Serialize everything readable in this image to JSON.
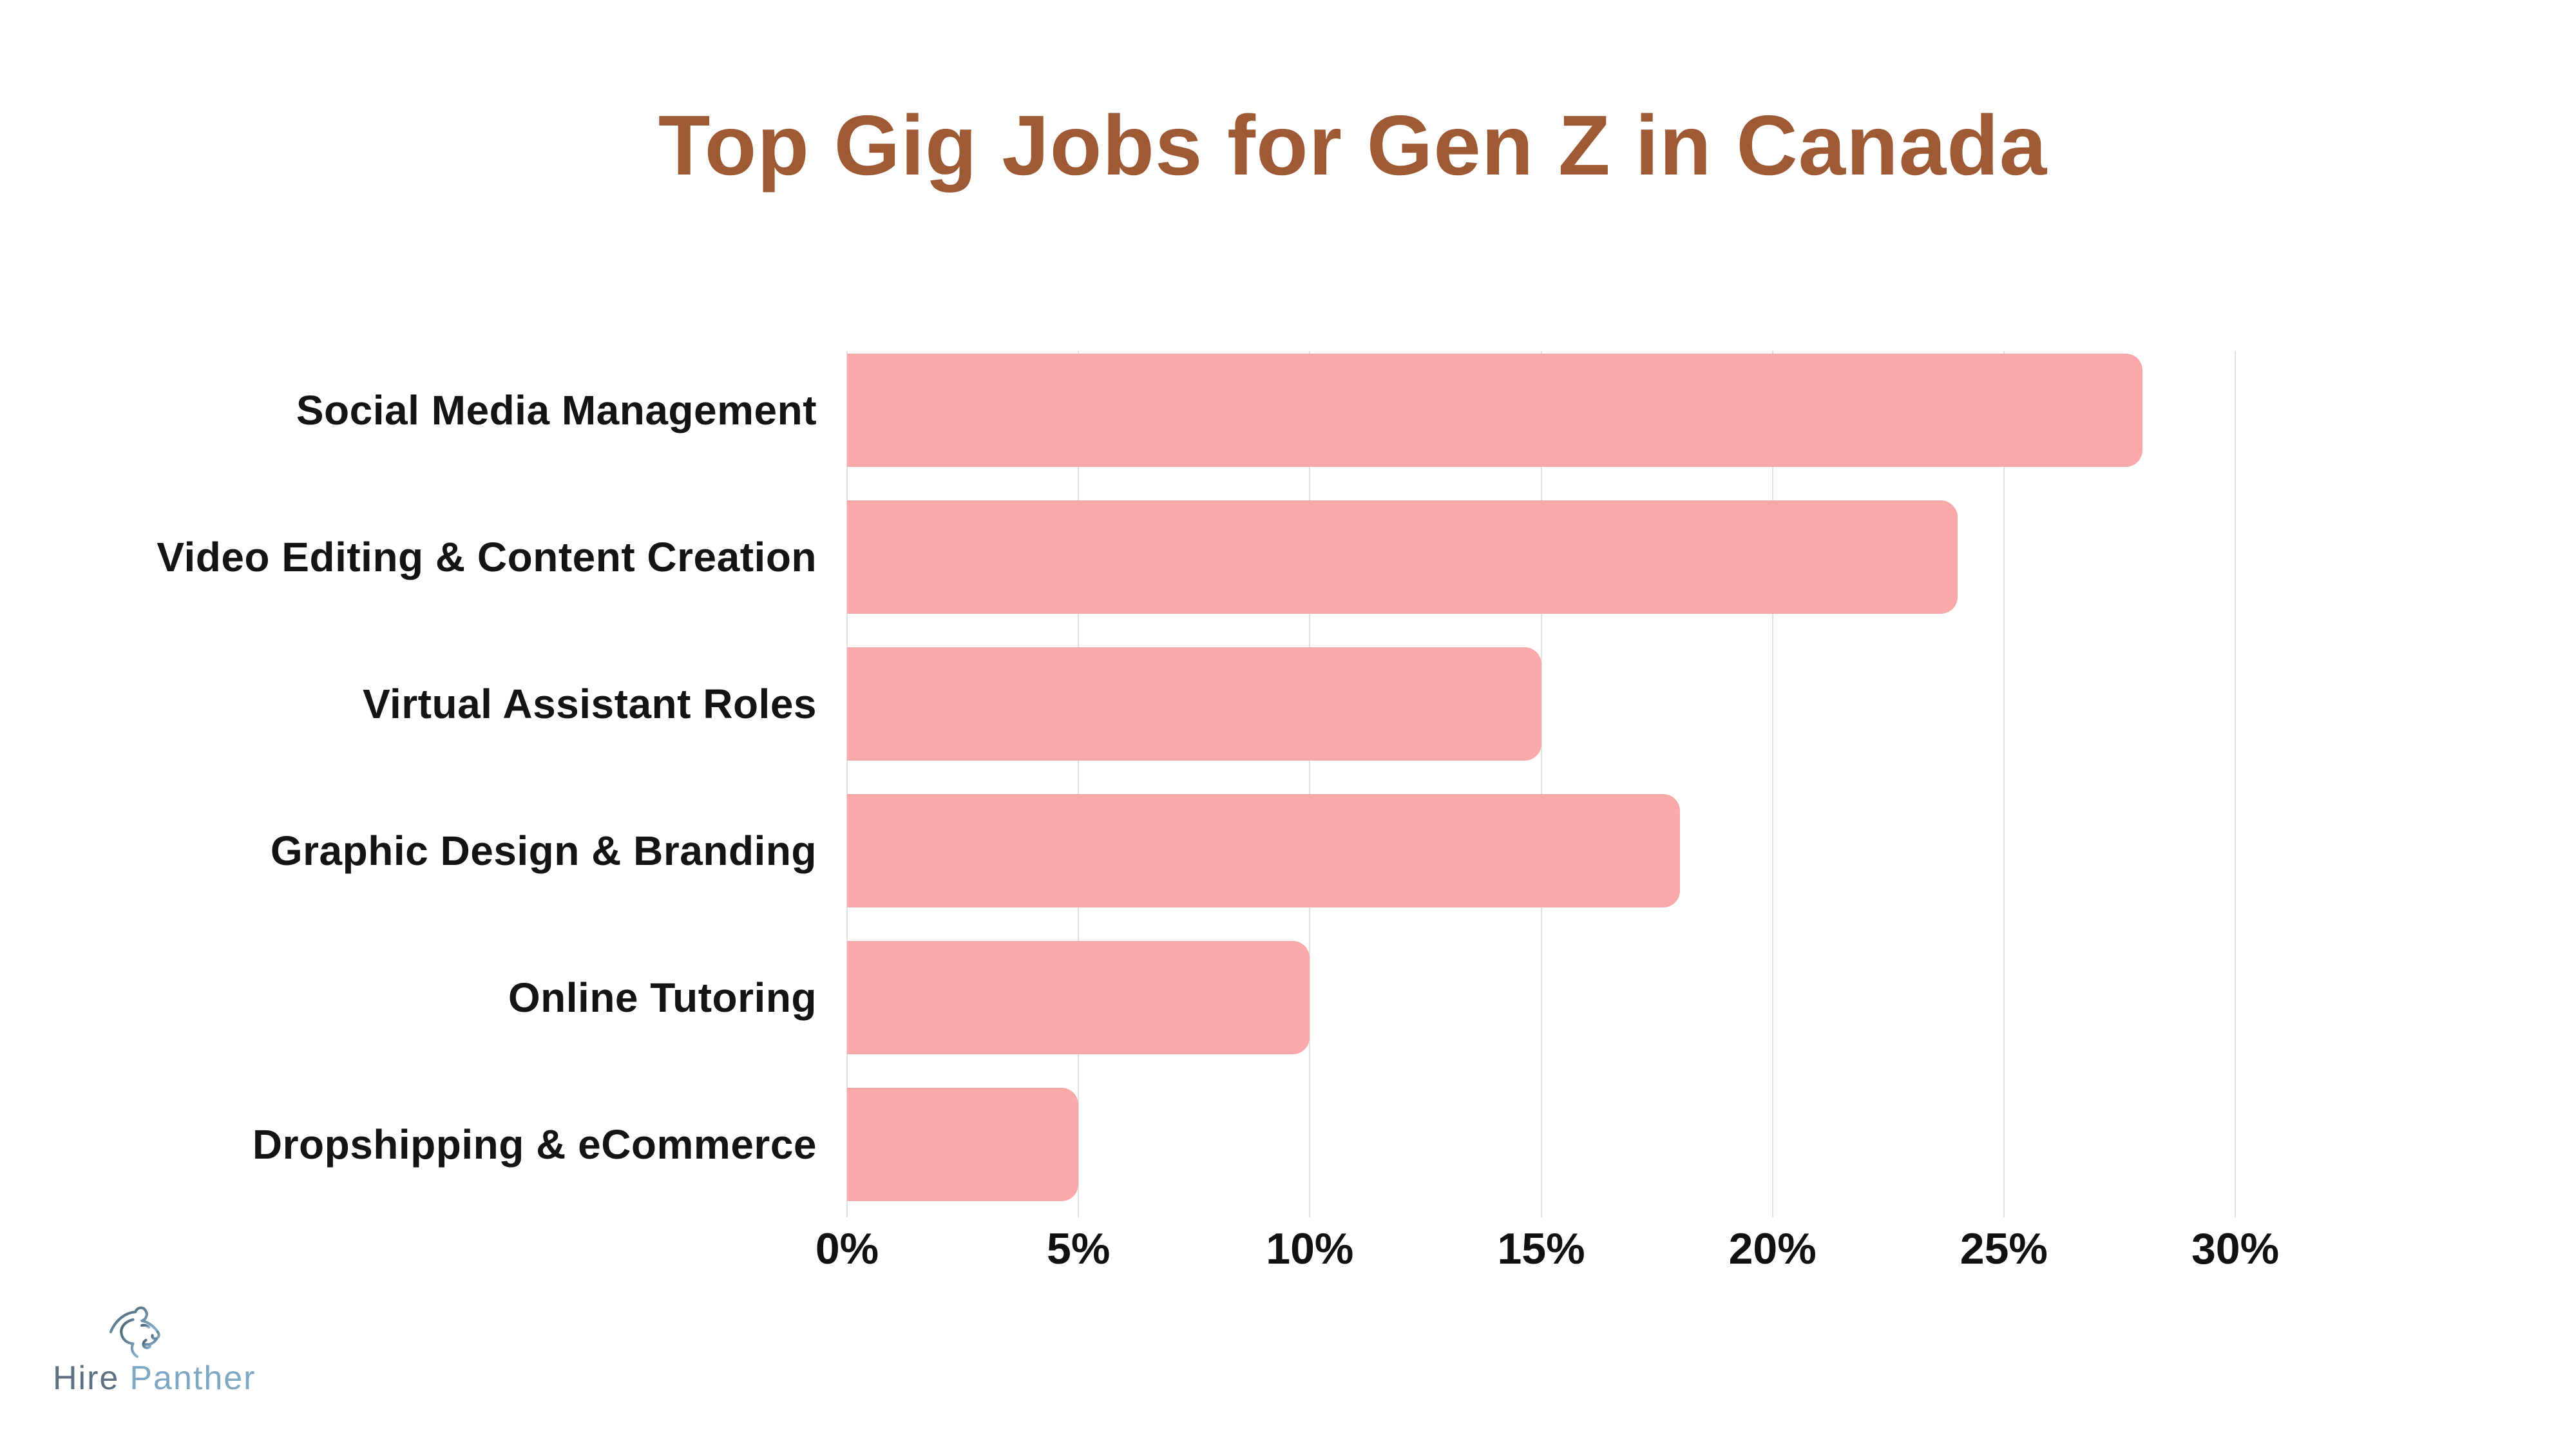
{
  "chart_data": {
    "type": "bar",
    "orientation": "horizontal",
    "title": "Top Gig Jobs for Gen Z in Canada",
    "title_color": "#9e5a35",
    "categories": [
      "Social Media Management",
      "Video Editing & Content Creation",
      "Virtual Assistant Roles",
      "Graphic Design & Branding",
      "Online Tutoring",
      "Dropshipping & eCommerce"
    ],
    "values": [
      28,
      24,
      15,
      18,
      10,
      5
    ],
    "unit": "%",
    "xlabel": "",
    "ylabel": "",
    "xlim": [
      0,
      30
    ],
    "x_tick_values": [
      0,
      5,
      10,
      15,
      20,
      25,
      30
    ],
    "x_tick_labels": [
      "0%",
      "5%",
      "10%",
      "15%",
      "20%",
      "25%",
      "30%"
    ],
    "grid": "vertical",
    "legend": "none",
    "bar_color": "#faa9ab",
    "gridline_color": "#e0e0e0",
    "category_label_color": "#141414",
    "tick_label_color": "#111111"
  },
  "footer_logo": {
    "icon": "panther-head-icon",
    "text_primary": "Hire",
    "text_secondary": "Panther",
    "primary_color": "#5e7081",
    "secondary_color": "#7fa9c3",
    "icon_color_dark": "#46606f",
    "icon_color_light": "#8ab1cc"
  }
}
